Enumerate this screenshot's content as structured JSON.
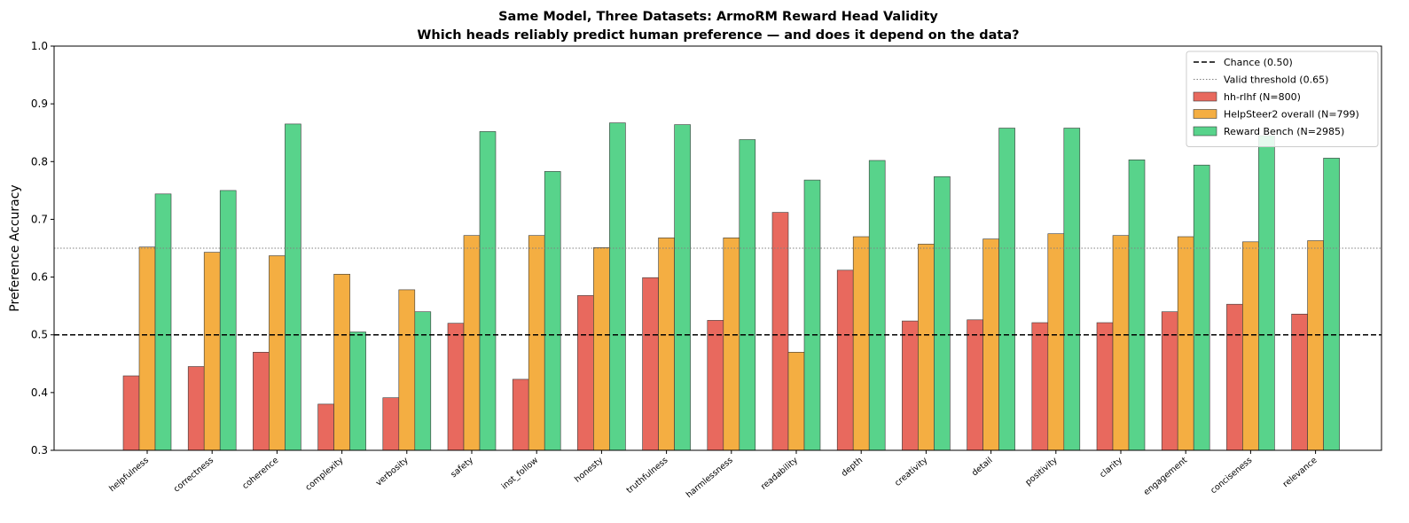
{
  "chart_data": {
    "type": "bar",
    "title_line1": "Same Model, Three Datasets: ArmoRM Reward Head Validity",
    "title_line2": "Which heads reliably predict human preference — and does it depend on the data?",
    "xlabel": "",
    "ylabel": "Preference Accuracy",
    "ylim": [
      0.3,
      1.0
    ],
    "yticks": [
      "0.3",
      "0.4",
      "0.5",
      "0.6",
      "0.7",
      "0.8",
      "0.9",
      "1.0"
    ],
    "grid": false,
    "legend_position": "top-right",
    "categories": [
      "helpfulness",
      "correctness",
      "coherence",
      "complexity",
      "verbosity",
      "safety",
      "inst_follow",
      "honesty",
      "truthfulness",
      "harmlessness",
      "readability",
      "depth",
      "creativity",
      "detail",
      "positivity",
      "clarity",
      "engagement",
      "conciseness",
      "relevance"
    ],
    "series": [
      {
        "name": "hh-rlhf (N=800)",
        "color": "#e8695e",
        "values": [
          0.429,
          0.445,
          0.47,
          0.38,
          0.391,
          0.52,
          0.423,
          0.568,
          0.599,
          0.525,
          0.712,
          0.612,
          0.524,
          0.526,
          0.521,
          0.521,
          0.54,
          0.553,
          0.536
        ]
      },
      {
        "name": "HelpSteer2 overall (N=799)",
        "color": "#f4ae42",
        "values": [
          0.652,
          0.643,
          0.637,
          0.605,
          0.578,
          0.672,
          0.672,
          0.651,
          0.668,
          0.668,
          0.47,
          0.67,
          0.657,
          0.666,
          0.675,
          0.672,
          0.67,
          0.661,
          0.663
        ]
      },
      {
        "name": "Reward Bench (N=2985)",
        "color": "#58d38b",
        "values": [
          0.744,
          0.75,
          0.865,
          0.505,
          0.54,
          0.852,
          0.783,
          0.867,
          0.864,
          0.838,
          0.768,
          0.802,
          0.774,
          0.858,
          0.858,
          0.803,
          0.794,
          0.845,
          0.806
        ]
      }
    ],
    "reference_lines": [
      {
        "name": "Chance (0.50)",
        "value": 0.5,
        "style": "dashed",
        "color": "#000000"
      },
      {
        "name": "Valid threshold (0.65)",
        "value": 0.65,
        "style": "dotted",
        "color": "#808080"
      }
    ]
  }
}
